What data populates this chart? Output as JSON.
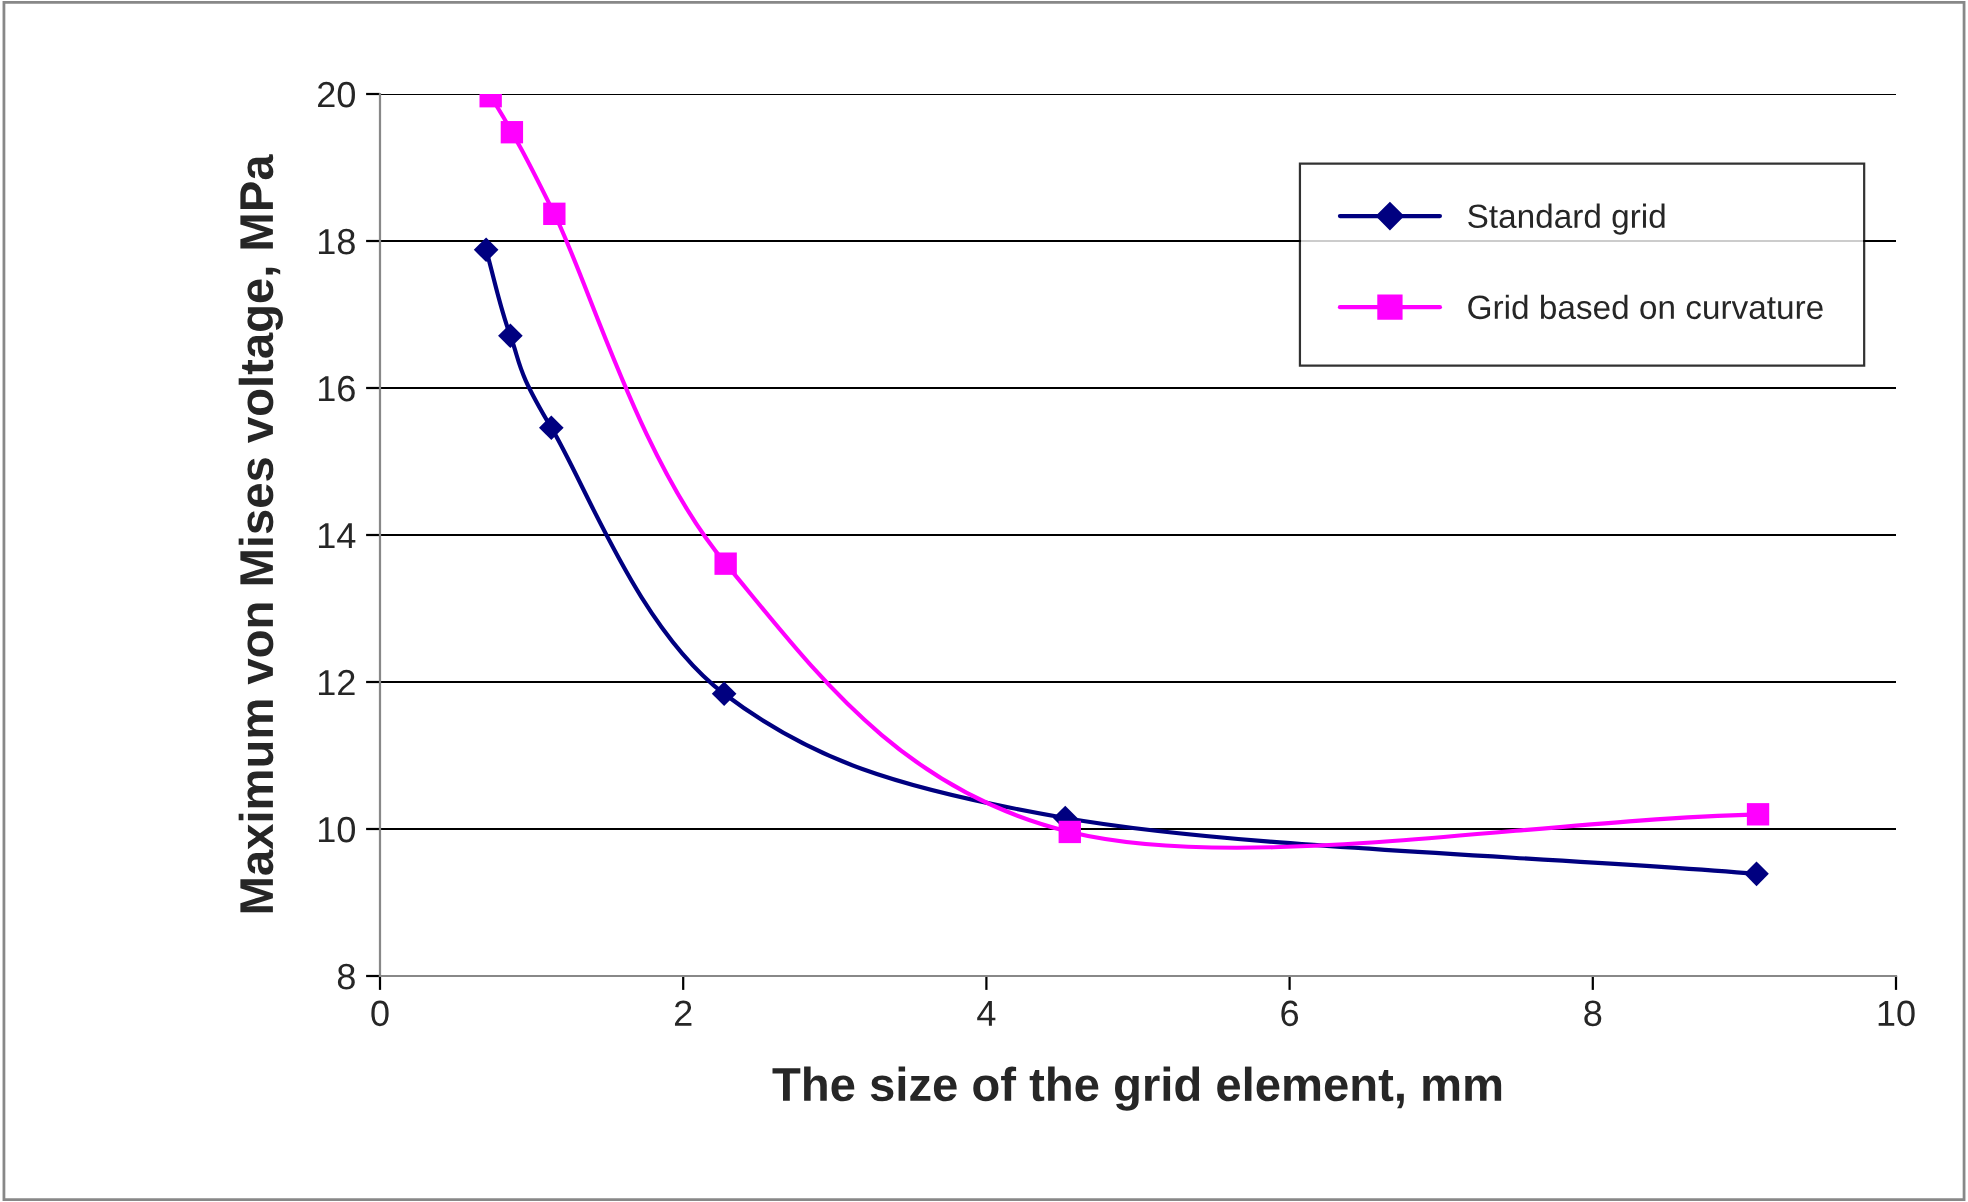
{
  "chart_data": {
    "type": "line",
    "xlabel": "The size of the grid element, mm",
    "ylabel": "Maximum von Mises voltage, MPa",
    "xlim": [
      0,
      10
    ],
    "xticks": [
      0,
      2,
      4,
      6,
      8,
      10
    ],
    "ylim": [
      8,
      20
    ],
    "yticks": [
      8,
      10,
      12,
      14,
      16,
      18,
      20
    ],
    "grid": "y",
    "legend": "top right",
    "line_style": "solid",
    "series": [
      {
        "name": "Standard grid",
        "color": "#000080",
        "marker": "diamond",
        "x": [
          0.7,
          0.86,
          1.13,
          2.27,
          4.52,
          9.08
        ],
        "values": [
          17.88,
          16.71,
          15.46,
          11.84,
          10.15,
          9.39
        ]
      },
      {
        "name": "Grid based on curvature",
        "color": "#ff00ff",
        "marker": "square",
        "x": [
          0.73,
          0.87,
          1.15,
          2.28,
          4.55,
          9.09
        ],
        "values": [
          19.97,
          19.48,
          18.37,
          13.61,
          9.96,
          10.2
        ]
      }
    ]
  }
}
